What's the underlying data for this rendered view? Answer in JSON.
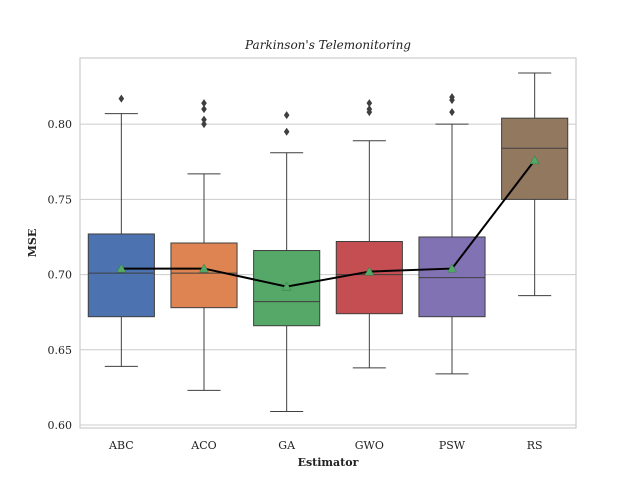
{
  "chart_data": {
    "type": "box",
    "title": "Parkinson's Telemonitoring",
    "xlabel": "Estimator",
    "ylabel": "MSE",
    "ylim": [
      0.598,
      0.844
    ],
    "yticks": [
      0.6,
      0.65,
      0.7,
      0.75,
      0.8
    ],
    "grid": "horizontal",
    "categories": [
      "ABC",
      "ACO",
      "GA",
      "GWO",
      "PSW",
      "RS"
    ],
    "colors": [
      "#4c72b0",
      "#dd8452",
      "#55a868",
      "#c44e52",
      "#8172b3",
      "#937860"
    ],
    "boxes": [
      {
        "whislo": 0.639,
        "q1": 0.672,
        "med": 0.701,
        "q3": 0.727,
        "whishi": 0.807,
        "mean": 0.704,
        "fliers": [
          0.817
        ]
      },
      {
        "whislo": 0.623,
        "q1": 0.678,
        "med": 0.701,
        "q3": 0.721,
        "whishi": 0.767,
        "mean": 0.704,
        "fliers": [
          0.8,
          0.803,
          0.81,
          0.814
        ]
      },
      {
        "whislo": 0.609,
        "q1": 0.666,
        "med": 0.682,
        "q3": 0.716,
        "whishi": 0.781,
        "mean": 0.692,
        "fliers": [
          0.795,
          0.806
        ]
      },
      {
        "whislo": 0.638,
        "q1": 0.674,
        "med": 0.7,
        "q3": 0.722,
        "whishi": 0.789,
        "mean": 0.702,
        "fliers": [
          0.808,
          0.81,
          0.814
        ]
      },
      {
        "whislo": 0.634,
        "q1": 0.672,
        "med": 0.698,
        "q3": 0.725,
        "whishi": 0.8,
        "mean": 0.704,
        "fliers": [
          0.808,
          0.816,
          0.818
        ]
      },
      {
        "whislo": 0.686,
        "q1": 0.75,
        "med": 0.784,
        "q3": 0.804,
        "whishi": 0.834,
        "mean": 0.776,
        "fliers": []
      }
    ],
    "mean_line_color": "#000000",
    "mean_marker_color": "#55a868"
  }
}
